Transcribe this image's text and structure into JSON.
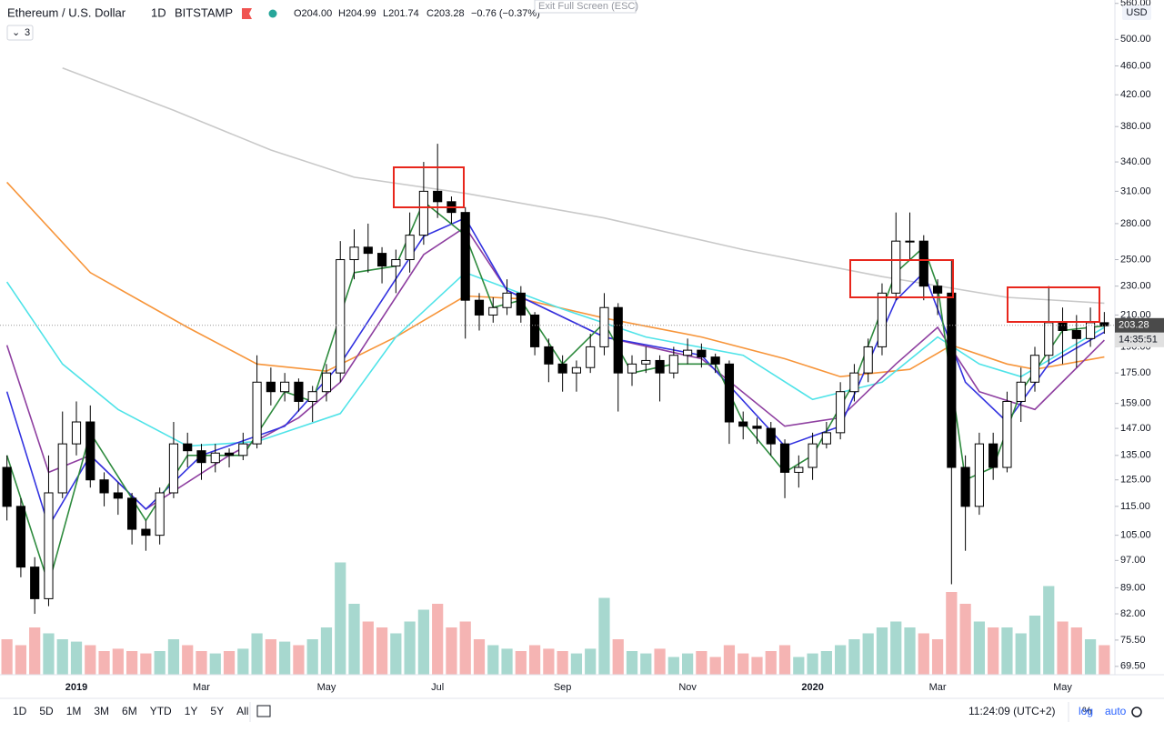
{
  "header": {
    "symbol": "Ethereum / U.S. Dollar",
    "interval": "1D",
    "exchange": "BITSTAMP",
    "open": "O204.00",
    "high": "H204.99",
    "low": "L201.74",
    "close": "C203.28",
    "change": "−0.76 (−0.37%)",
    "indicators": "3"
  },
  "exit_fullscreen": "Exit Full Screen (ESC)",
  "currency": "USD",
  "countdown": "14:35:51",
  "range_buttons": [
    "1D",
    "5D",
    "1M",
    "3M",
    "6M",
    "YTD",
    "1Y",
    "5Y",
    "All"
  ],
  "clock": "11:24:09 (UTC+2)",
  "scale_options": [
    "%",
    "log",
    "auto"
  ],
  "chart_data": {
    "type": "candlestick",
    "log_scale": true,
    "up_color": "#ffffff",
    "down_color": "#000000",
    "last_price": 203.28,
    "categories": [
      null,
      null,
      null,
      null,
      null,
      "2019",
      null,
      null,
      null,
      null,
      null,
      null,
      null,
      null,
      "Mar",
      null,
      null,
      null,
      null,
      null,
      null,
      null,
      null,
      "May",
      null,
      null,
      null,
      null,
      null,
      null,
      null,
      "Jul",
      null,
      null,
      null,
      null,
      null,
      null,
      null,
      null,
      "Sep",
      null,
      null,
      null,
      null,
      null,
      null,
      null,
      null,
      "Nov",
      null,
      null,
      null,
      null,
      null,
      null,
      null,
      null,
      "2020",
      null,
      null,
      null,
      null,
      null,
      null,
      null,
      null,
      "Mar",
      null,
      null,
      null,
      null,
      null,
      null,
      null,
      null,
      "May",
      null,
      null,
      null
    ],
    "open": [
      130,
      115,
      95,
      86,
      120,
      140,
      150,
      125,
      120,
      118,
      107,
      105,
      120,
      140,
      137,
      132,
      136,
      135,
      140,
      170,
      165,
      170,
      160,
      165,
      175,
      250,
      260,
      255,
      245,
      250,
      270,
      310,
      300,
      290,
      220,
      210,
      215,
      225,
      210,
      190,
      180,
      175,
      178,
      190,
      215,
      175,
      180,
      182,
      175,
      185,
      188,
      184,
      180,
      150,
      148,
      147,
      140,
      128,
      130,
      140,
      145,
      165,
      175,
      190,
      225,
      265,
      265,
      230,
      225,
      130,
      115,
      140,
      130,
      160,
      170,
      185,
      205,
      200,
      195,
      205
    ],
    "high": [
      135,
      118,
      98,
      135,
      155,
      160,
      158,
      128,
      124,
      120,
      110,
      122,
      150,
      145,
      140,
      140,
      138,
      145,
      185,
      178,
      175,
      172,
      168,
      180,
      265,
      275,
      280,
      260,
      258,
      290,
      340,
      360,
      305,
      295,
      225,
      222,
      235,
      230,
      212,
      195,
      185,
      182,
      198,
      225,
      218,
      185,
      190,
      185,
      190,
      195,
      192,
      186,
      182,
      155,
      152,
      150,
      142,
      135,
      145,
      150,
      170,
      180,
      195,
      232,
      290,
      290,
      270,
      235,
      250,
      135,
      145,
      145,
      165,
      178,
      190,
      230,
      215,
      210,
      215,
      212
    ],
    "low": [
      110,
      92,
      82,
      84,
      118,
      135,
      122,
      115,
      112,
      102,
      100,
      102,
      118,
      130,
      125,
      128,
      130,
      133,
      138,
      158,
      160,
      155,
      150,
      160,
      170,
      235,
      240,
      232,
      225,
      240,
      262,
      285,
      280,
      195,
      200,
      205,
      210,
      205,
      185,
      170,
      165,
      165,
      175,
      185,
      155,
      168,
      175,
      160,
      172,
      180,
      178,
      175,
      140,
      142,
      140,
      135,
      118,
      122,
      125,
      138,
      142,
      160,
      170,
      185,
      220,
      250,
      220,
      210,
      90,
      100,
      112,
      125,
      128,
      150,
      165,
      180,
      180,
      178,
      190,
      198
    ],
    "close": [
      115,
      95,
      86,
      120,
      140,
      150,
      125,
      120,
      118,
      107,
      105,
      120,
      140,
      137,
      132,
      136,
      135,
      140,
      170,
      165,
      170,
      160,
      165,
      175,
      250,
      260,
      255,
      245,
      250,
      270,
      310,
      300,
      290,
      220,
      210,
      215,
      225,
      210,
      190,
      180,
      175,
      178,
      190,
      215,
      175,
      180,
      182,
      175,
      185,
      188,
      184,
      180,
      150,
      148,
      147,
      140,
      128,
      130,
      140,
      145,
      165,
      175,
      190,
      225,
      265,
      265,
      230,
      225,
      130,
      115,
      140,
      130,
      160,
      170,
      185,
      205,
      200,
      195,
      205,
      203
    ],
    "volume": [
      30,
      25,
      40,
      35,
      30,
      28,
      25,
      20,
      22,
      20,
      18,
      20,
      30,
      25,
      20,
      18,
      20,
      22,
      35,
      30,
      28,
      25,
      30,
      40,
      95,
      60,
      45,
      40,
      35,
      45,
      55,
      60,
      40,
      45,
      30,
      25,
      22,
      20,
      25,
      22,
      20,
      18,
      22,
      65,
      30,
      20,
      18,
      22,
      15,
      18,
      20,
      15,
      25,
      18,
      15,
      20,
      25,
      15,
      18,
      20,
      25,
      30,
      35,
      40,
      45,
      40,
      35,
      30,
      70,
      60,
      45,
      40,
      40,
      35,
      50,
      75,
      45,
      40,
      30,
      25
    ],
    "overlays": [
      {
        "color": "#c9c9c9",
        "x": [
          4,
          12,
          19,
          25,
          33,
          43,
          53,
          63,
          72,
          79
        ],
        "values": [
          457,
          400,
          353,
          324,
          308,
          285,
          258,
          237,
          222,
          218
        ]
      },
      {
        "color": "#f7953a",
        "x": [
          0,
          6,
          13,
          18,
          23,
          28,
          33,
          37,
          43,
          50,
          56,
          60,
          65,
          68,
          72,
          74,
          79
        ],
        "values": [
          319,
          240,
          202,
          180,
          176,
          196,
          223,
          221,
          208,
          196,
          183,
          173,
          177,
          191,
          180,
          177,
          184
        ]
      },
      {
        "color": "#4fe3e8",
        "x": [
          0,
          4,
          8,
          13,
          18,
          24,
          28,
          33,
          40,
          46,
          53,
          58,
          63,
          67,
          70,
          73,
          79
        ],
        "values": [
          233,
          180,
          156,
          139,
          141,
          154,
          196,
          240,
          214,
          196,
          185,
          161,
          170,
          196,
          180,
          173,
          202
        ]
      },
      {
        "color": "#8e3fa0",
        "x": [
          0,
          3,
          6,
          10,
          16,
          21,
          24,
          30,
          33,
          36,
          43,
          50,
          56,
          60,
          64,
          67,
          70,
          74,
          79
        ],
        "values": [
          191,
          128,
          135,
          114,
          135,
          152,
          170,
          254,
          277,
          227,
          196,
          183,
          148,
          152,
          180,
          202,
          165,
          156,
          194
        ]
      },
      {
        "color": "#3333e0",
        "x": [
          0,
          3,
          6,
          10,
          14,
          20,
          24,
          30,
          33,
          36,
          43,
          50,
          56,
          60,
          64,
          66,
          69,
          72,
          75,
          79
        ],
        "values": [
          165,
          108,
          135,
          114,
          135,
          148,
          180,
          269,
          285,
          227,
          196,
          185,
          139,
          148,
          220,
          240,
          170,
          150,
          180,
          199
        ]
      },
      {
        "color": "#2e8b3e",
        "x": [
          0,
          3,
          6,
          10,
          13,
          17,
          20,
          22,
          25,
          28,
          30,
          33,
          35,
          37,
          40,
          43,
          45,
          48,
          51,
          53,
          56,
          58,
          61,
          64,
          66,
          67,
          69,
          71,
          73,
          76,
          79
        ],
        "values": [
          135,
          90,
          145,
          110,
          135,
          135,
          165,
          160,
          240,
          245,
          300,
          270,
          215,
          220,
          180,
          205,
          175,
          180,
          180,
          150,
          128,
          135,
          170,
          240,
          260,
          230,
          125,
          130,
          165,
          200,
          203
        ]
      }
    ],
    "ylim": [
      67.7,
      566
    ],
    "yticks": [
      {
        "value": 69.5,
        "label": "69.50"
      },
      {
        "value": 75.5,
        "label": "75.50"
      },
      {
        "value": 82,
        "label": "82.00"
      },
      {
        "value": 89,
        "label": "89.00"
      },
      {
        "value": 97,
        "label": "97.00"
      },
      {
        "value": 105,
        "label": "105.00"
      },
      {
        "value": 115,
        "label": "115.00"
      },
      {
        "value": 125,
        "label": "125.00"
      },
      {
        "value": 135,
        "label": "135.00"
      },
      {
        "value": 147,
        "label": "147.00"
      },
      {
        "value": 159,
        "label": "159.00"
      },
      {
        "value": 175,
        "label": "175.00"
      },
      {
        "value": 190,
        "label": "190.00"
      },
      {
        "value": 210,
        "label": "210.00"
      },
      {
        "value": 230,
        "label": "230.00"
      },
      {
        "value": 250,
        "label": "250.00"
      },
      {
        "value": 280,
        "label": "280.00"
      },
      {
        "value": 310,
        "label": "310.00"
      },
      {
        "value": 340,
        "label": "340.00"
      },
      {
        "value": 380,
        "label": "380.00"
      },
      {
        "value": 420,
        "label": "420.00"
      },
      {
        "value": 460,
        "label": "460.00"
      },
      {
        "value": 500,
        "label": "500.00"
      },
      {
        "value": 560,
        "label": "560.00"
      }
    ]
  }
}
